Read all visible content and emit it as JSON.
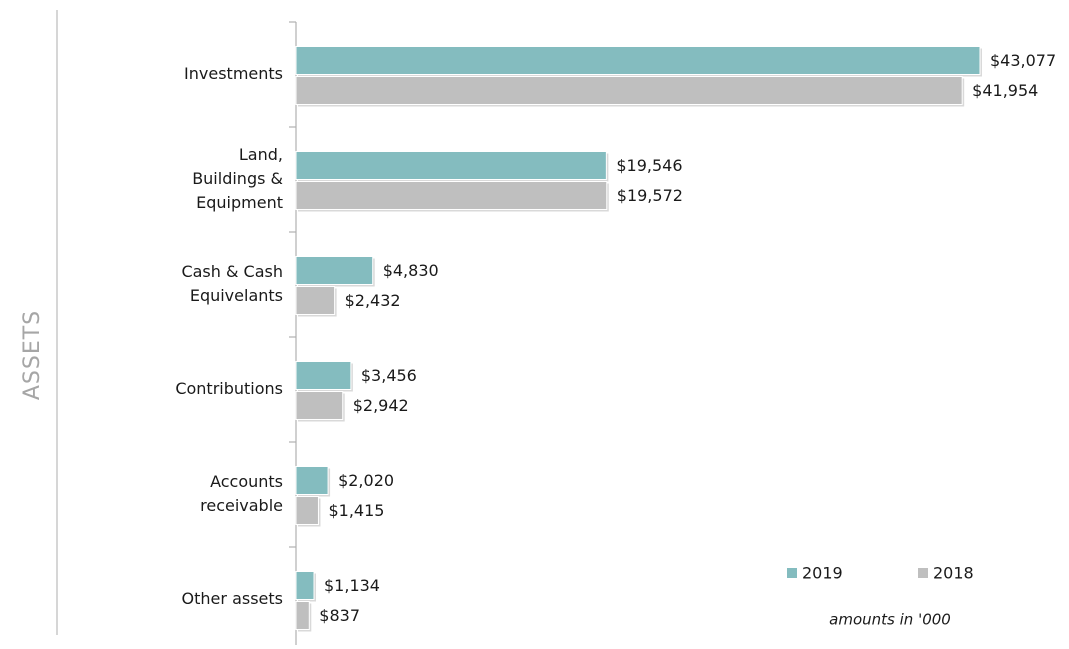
{
  "chart_data": {
    "type": "hbar",
    "ylabel": "ASSETS",
    "annotation": "amounts in '000",
    "categories": [
      [
        "Investments"
      ],
      [
        "Land,",
        "Buildings &",
        "Equipment"
      ],
      [
        "Cash & Cash",
        "Equivelants"
      ],
      [
        "Contributions"
      ],
      [
        "Accounts",
        "receivable"
      ],
      [
        "Other assets"
      ]
    ],
    "series": [
      {
        "name": "2019",
        "color": "#84bcbf",
        "values": [
          43077,
          19546,
          4830,
          3456,
          2020,
          1134
        ],
        "value_labels": [
          "$43,077",
          "$19,546",
          "$4,830",
          "$3,456",
          "$2,020",
          "$1,134"
        ]
      },
      {
        "name": "2018",
        "color": "#bfbfbf",
        "values": [
          41954,
          19572,
          2432,
          2942,
          1415,
          837
        ],
        "value_labels": [
          "$41,954",
          "$19,572",
          "$2,432",
          "$2,942",
          "$1,415",
          "$837"
        ]
      }
    ],
    "legend": "lower right"
  }
}
